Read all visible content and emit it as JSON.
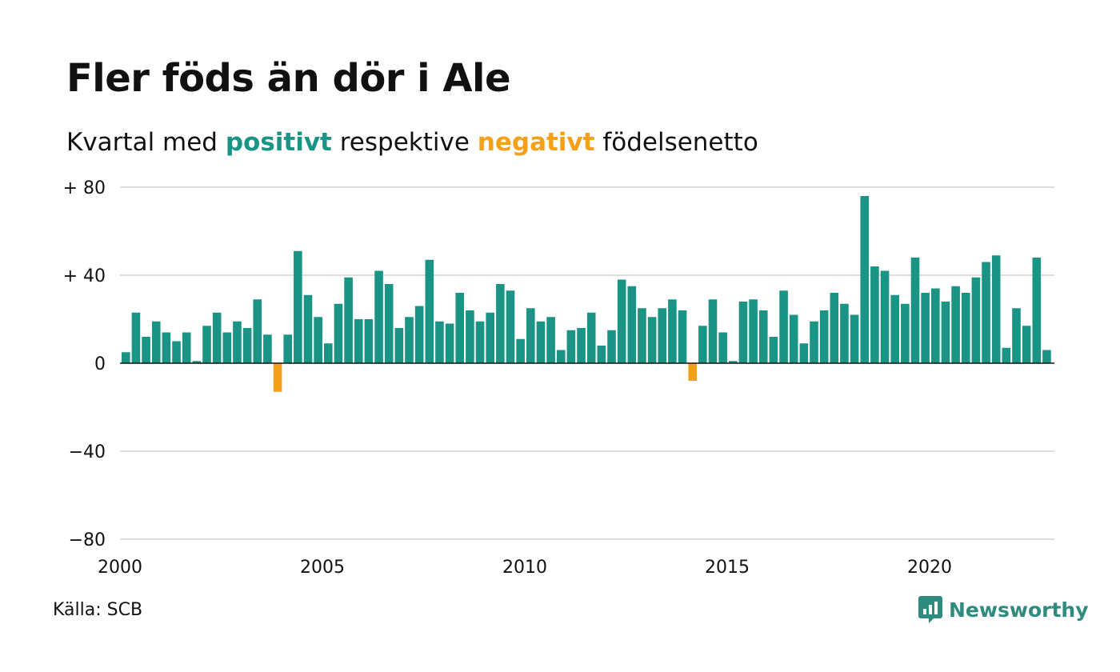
{
  "title": "Fler föds än dör i Ale",
  "subtitle": {
    "before": "Kvartal med ",
    "positive": "positivt",
    "middle": " respektive ",
    "negative": "negativt",
    "after": " födelsenetto"
  },
  "source": "Källa: SCB",
  "logo": {
    "name": "Newsworthy",
    "icon": "newsworthy-chart-bubble-icon"
  },
  "colors": {
    "positive": "#1a9485",
    "negative": "#f5a01a",
    "grid": "#dddddd",
    "axis": "#111111"
  },
  "chart_data": {
    "type": "bar",
    "title": "Fler föds än dör i Ale",
    "xlabel": "",
    "ylabel": "",
    "ylim": [
      -80,
      80
    ],
    "yticks": [
      {
        "value": 80,
        "label": "+ 80"
      },
      {
        "value": 40,
        "label": "+ 40"
      },
      {
        "value": 0,
        "label": "0"
      },
      {
        "value": -40,
        "label": "−40"
      },
      {
        "value": -80,
        "label": "−80"
      }
    ],
    "xticks": [
      {
        "value": 2000,
        "label": "2000"
      },
      {
        "value": 2005,
        "label": "2005"
      },
      {
        "value": 2010,
        "label": "2010"
      },
      {
        "value": 2015,
        "label": "2015"
      },
      {
        "value": 2020,
        "label": "2020"
      }
    ],
    "grid": true,
    "start_year": 2000,
    "frequency": "quarter",
    "values": [
      5,
      23,
      12,
      19,
      14,
      10,
      14,
      1,
      17,
      23,
      14,
      19,
      16,
      29,
      13,
      -13,
      13,
      51,
      31,
      21,
      9,
      27,
      39,
      20,
      20,
      42,
      36,
      16,
      21,
      26,
      47,
      19,
      18,
      32,
      24,
      19,
      23,
      36,
      33,
      11,
      25,
      19,
      21,
      6,
      15,
      16,
      23,
      8,
      15,
      38,
      35,
      25,
      21,
      25,
      29,
      24,
      -8,
      17,
      29,
      14,
      1,
      28,
      29,
      24,
      12,
      33,
      22,
      9,
      19,
      24,
      32,
      27,
      22,
      76,
      44,
      42,
      31,
      27,
      48,
      32,
      34,
      28,
      35,
      32,
      39,
      46,
      49,
      7,
      25,
      17,
      48,
      6
    ]
  }
}
